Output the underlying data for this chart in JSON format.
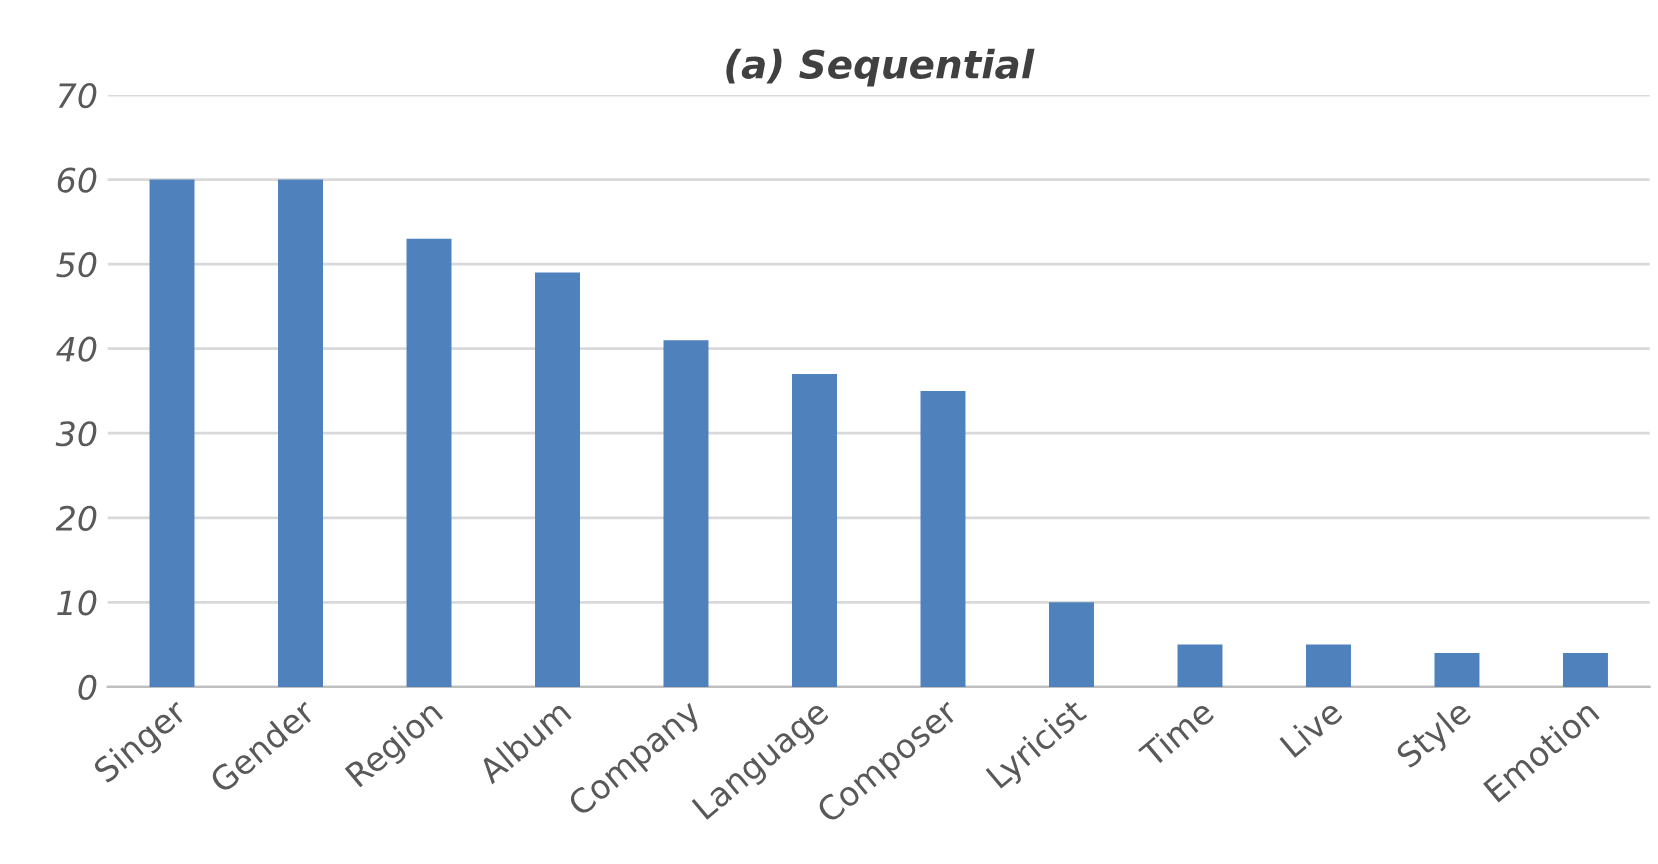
{
  "chart_data": {
    "type": "bar",
    "title": "(a) Sequential",
    "categories": [
      "Singer",
      "Gender",
      "Region",
      "Album",
      "Company",
      "Language",
      "Composer",
      "Lyricist",
      "Time",
      "Live",
      "Style",
      "Emotion"
    ],
    "values": [
      60,
      60,
      53,
      49,
      41,
      37,
      35,
      10,
      5,
      5,
      4,
      4
    ],
    "color": "#4f81bd",
    "ylim": [
      0,
      70
    ],
    "yticks": [
      0,
      10,
      20,
      30,
      40,
      50,
      60,
      70
    ],
    "grid": "y"
  }
}
